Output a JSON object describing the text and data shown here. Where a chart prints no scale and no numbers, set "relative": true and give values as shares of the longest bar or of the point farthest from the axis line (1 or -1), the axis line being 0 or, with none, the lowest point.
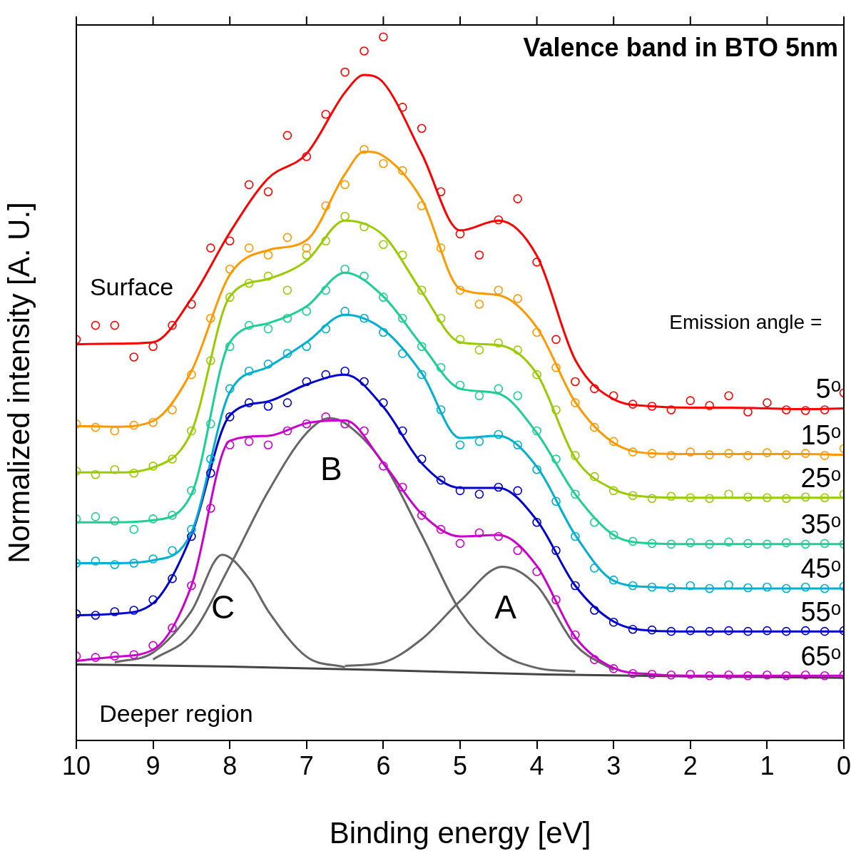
{
  "chart_data": {
    "type": "scatter",
    "title": "Valence band in BTO 5nm",
    "xlabel": "Binding energy [eV]",
    "ylabel": "Normalized intensity [A. U.]",
    "relative": true,
    "xlim": [
      10,
      0
    ],
    "xticks": [
      10,
      9,
      8,
      7,
      6,
      5,
      4,
      3,
      2,
      1,
      0
    ],
    "grid": false,
    "legend": false,
    "tick_labels": "x",
    "annotations": [
      "A",
      "B",
      "C",
      "Surface",
      "Deeper region",
      "Emission angle ="
    ],
    "series": [
      {
        "color": "#ff0000",
        "x": [
          10,
          9.75,
          9.5,
          9.25,
          9,
          8.75,
          8.5,
          8.25,
          8,
          7.75,
          7.5,
          7.25,
          7,
          6.75,
          6.5,
          6.25,
          6,
          5.75,
          5.5,
          5.25,
          5,
          4.75,
          4.5,
          4.25,
          4,
          3.75,
          3.5,
          3.25,
          3,
          2.75,
          2.5,
          2.25,
          2,
          1.75,
          1.5,
          1.25,
          1,
          0.75,
          0.5,
          0.25,
          0
        ],
        "values": [
          0.57,
          0.59,
          0.59,
          0.545,
          0.56,
          0.59,
          0.62,
          0.7,
          0.71,
          0.79,
          0.78,
          0.86,
          0.83,
          0.89,
          0.95,
          0.98,
          1.0,
          0.9,
          0.87,
          0.78,
          0.72,
          0.69,
          0.74,
          0.77,
          0.68,
          0.57,
          0.51,
          0.5,
          0.49,
          0.478,
          0.475,
          0.47,
          0.483,
          0.476,
          0.49,
          0.467,
          0.48,
          0.47,
          0.469,
          0.47,
          0.494
        ]
      },
      {
        "color": "#ff9900",
        "x": [
          10,
          9.75,
          9.5,
          9.25,
          9,
          8.75,
          8.5,
          8.25,
          8,
          7.75,
          7.5,
          7.25,
          7,
          6.75,
          6.5,
          6.25,
          6,
          5.75,
          5.5,
          5.25,
          5,
          4.75,
          4.5,
          4.25,
          4,
          3.75,
          3.5,
          3.25,
          3,
          2.75,
          2.5,
          2.25,
          2,
          1.75,
          1.5,
          1.25,
          1,
          0.75,
          0.5,
          0.25,
          0
        ],
        "values": [
          0.45,
          0.445,
          0.44,
          0.448,
          0.452,
          0.47,
          0.52,
          0.6,
          0.67,
          0.7,
          0.69,
          0.715,
          0.7,
          0.76,
          0.79,
          0.84,
          0.82,
          0.81,
          0.76,
          0.7,
          0.64,
          0.62,
          0.64,
          0.628,
          0.58,
          0.53,
          0.48,
          0.445,
          0.425,
          0.41,
          0.408,
          0.405,
          0.41,
          0.406,
          0.408,
          0.405,
          0.409,
          0.406,
          0.408,
          0.405,
          0.415
        ]
      },
      {
        "color": "#99cc00",
        "x": [
          10,
          9.75,
          9.5,
          9.25,
          9,
          8.75,
          8.5,
          8.25,
          8,
          7.75,
          7.5,
          7.25,
          7,
          6.75,
          6.5,
          6.25,
          6,
          5.75,
          5.5,
          5.25,
          5,
          4.75,
          4.5,
          4.25,
          4,
          3.75,
          3.5,
          3.25,
          3,
          2.75,
          2.5,
          2.25,
          2,
          1.75,
          1.5,
          1.25,
          1,
          0.75,
          0.5,
          0.25,
          0
        ],
        "values": [
          0.383,
          0.378,
          0.385,
          0.38,
          0.39,
          0.4,
          0.44,
          0.54,
          0.63,
          0.65,
          0.66,
          0.64,
          0.69,
          0.71,
          0.745,
          0.73,
          0.705,
          0.69,
          0.64,
          0.6,
          0.57,
          0.555,
          0.565,
          0.555,
          0.52,
          0.47,
          0.405,
          0.375,
          0.355,
          0.348,
          0.344,
          0.347,
          0.345,
          0.344,
          0.35,
          0.346,
          0.345,
          0.344,
          0.346,
          0.345,
          0.35
        ]
      },
      {
        "color": "#1ccf93",
        "x": [
          10,
          9.75,
          9.5,
          9.25,
          9,
          8.75,
          8.5,
          8.25,
          8,
          7.75,
          7.5,
          7.25,
          7,
          6.75,
          6.5,
          6.25,
          6,
          5.75,
          5.5,
          5.25,
          5,
          4.75,
          4.5,
          4.25,
          4,
          3.75,
          3.5,
          3.25,
          3,
          2.75,
          2.5,
          2.25,
          2,
          1.75,
          1.5,
          1.25,
          1,
          0.75,
          0.5,
          0.25,
          0
        ],
        "values": [
          0.315,
          0.318,
          0.312,
          0.3,
          0.315,
          0.32,
          0.355,
          0.45,
          0.56,
          0.59,
          0.585,
          0.6,
          0.61,
          0.64,
          0.67,
          0.66,
          0.63,
          0.6,
          0.56,
          0.53,
          0.505,
          0.49,
          0.5,
          0.49,
          0.44,
          0.4,
          0.35,
          0.31,
          0.292,
          0.283,
          0.28,
          0.279,
          0.281,
          0.279,
          0.282,
          0.28,
          0.279,
          0.281,
          0.279,
          0.28,
          0.279
        ]
      },
      {
        "color": "#00b0d0",
        "x": [
          10,
          9.75,
          9.5,
          9.25,
          9,
          8.75,
          8.5,
          8.25,
          8,
          7.75,
          7.5,
          7.25,
          7,
          6.75,
          6.5,
          6.25,
          6,
          5.75,
          5.5,
          5.25,
          5,
          4.75,
          4.5,
          4.25,
          4,
          3.75,
          3.5,
          3.25,
          3,
          2.75,
          2.5,
          2.25,
          2,
          1.75,
          1.5,
          1.25,
          1,
          0.75,
          0.5,
          0.25,
          0
        ],
        "values": [
          0.252,
          0.255,
          0.25,
          0.252,
          0.258,
          0.27,
          0.3,
          0.4,
          0.5,
          0.525,
          0.535,
          0.55,
          0.56,
          0.585,
          0.61,
          0.6,
          0.58,
          0.55,
          0.52,
          0.47,
          0.42,
          0.425,
          0.435,
          0.42,
          0.385,
          0.34,
          0.29,
          0.245,
          0.228,
          0.22,
          0.218,
          0.217,
          0.22,
          0.216,
          0.221,
          0.217,
          0.218,
          0.216,
          0.218,
          0.216,
          0.219
        ]
      },
      {
        "color": "#0000cc",
        "x": [
          10,
          9.75,
          9.5,
          9.25,
          9,
          8.75,
          8.5,
          8.25,
          8,
          7.75,
          7.5,
          7.25,
          7,
          6.75,
          6.5,
          6.25,
          6,
          5.75,
          5.5,
          5.25,
          5,
          4.75,
          4.5,
          4.25,
          4,
          3.75,
          3.5,
          3.25,
          3,
          2.75,
          2.5,
          2.25,
          2,
          1.75,
          1.5,
          1.25,
          1,
          0.75,
          0.5,
          0.25,
          0
        ],
        "values": [
          0.18,
          0.178,
          0.183,
          0.185,
          0.2,
          0.23,
          0.29,
          0.38,
          0.46,
          0.48,
          0.475,
          0.48,
          0.51,
          0.52,
          0.525,
          0.51,
          0.48,
          0.44,
          0.4,
          0.37,
          0.355,
          0.35,
          0.36,
          0.355,
          0.31,
          0.27,
          0.22,
          0.185,
          0.168,
          0.158,
          0.157,
          0.155,
          0.156,
          0.155,
          0.156,
          0.155,
          0.156,
          0.155,
          0.156,
          0.155,
          0.156
        ]
      },
      {
        "color": "#cc00cc",
        "x": [
          10,
          9.75,
          9.5,
          9.25,
          9,
          8.75,
          8.5,
          8.25,
          8,
          7.75,
          7.5,
          7.25,
          7,
          6.75,
          6.5,
          6.25,
          6,
          5.75,
          5.5,
          5.25,
          5,
          4.75,
          4.5,
          4.25,
          4,
          3.75,
          3.5,
          3.25,
          3,
          2.75,
          2.5,
          2.25,
          2,
          1.75,
          1.5,
          1.25,
          1,
          0.75,
          0.5,
          0.25,
          0
        ],
        "values": [
          0.12,
          0.118,
          0.12,
          0.122,
          0.135,
          0.16,
          0.22,
          0.33,
          0.42,
          0.425,
          0.42,
          0.44,
          0.45,
          0.46,
          0.45,
          0.44,
          0.39,
          0.36,
          0.32,
          0.3,
          0.28,
          0.295,
          0.29,
          0.27,
          0.24,
          0.2,
          0.15,
          0.115,
          0.102,
          0.095,
          0.094,
          0.093,
          0.094,
          0.092,
          0.093,
          0.092,
          0.093,
          0.092,
          0.093,
          0.092,
          0.093
        ]
      },
      {
        "type": "line",
        "name": "5ᵒ",
        "color": "#ff0000",
        "x": [
          10,
          9.5,
          9,
          8.5,
          8,
          7.5,
          7,
          6.5,
          6.25,
          6,
          5.5,
          5,
          4.5,
          4,
          3.5,
          3,
          2.5,
          2,
          1.5,
          1,
          0.5,
          0
        ],
        "values": [
          0.563,
          0.564,
          0.566,
          0.628,
          0.722,
          0.799,
          0.834,
          0.921,
          0.946,
          0.935,
          0.834,
          0.725,
          0.739,
          0.689,
          0.541,
          0.485,
          0.475,
          0.473,
          0.473,
          0.472,
          0.471,
          0.472
        ]
      },
      {
        "type": "line",
        "name": "15ᵒ",
        "color": "#ff9900",
        "x": [
          10,
          9.5,
          9,
          8.5,
          8,
          7.5,
          7,
          6.5,
          6.25,
          6,
          5.5,
          5,
          4.5,
          4,
          3.5,
          3,
          2.5,
          2,
          1.5,
          1,
          0.5,
          0
        ],
        "values": [
          0.447,
          0.446,
          0.454,
          0.525,
          0.662,
          0.697,
          0.711,
          0.805,
          0.837,
          0.831,
          0.769,
          0.642,
          0.633,
          0.587,
          0.481,
          0.423,
          0.408,
          0.407,
          0.407,
          0.407,
          0.407,
          0.406
        ]
      },
      {
        "type": "line",
        "name": "25ᵒ",
        "color": "#99cc00",
        "x": [
          10,
          9.5,
          9,
          8.5,
          8,
          7.5,
          7,
          6.5,
          6,
          5.5,
          5,
          4.5,
          4,
          3.5,
          3,
          2.5,
          2,
          1.5,
          1,
          0.5,
          0
        ],
        "values": [
          0.381,
          0.381,
          0.388,
          0.439,
          0.631,
          0.656,
          0.682,
          0.739,
          0.718,
          0.638,
          0.566,
          0.562,
          0.521,
          0.401,
          0.357,
          0.346,
          0.345,
          0.345,
          0.345,
          0.345,
          0.345
        ]
      },
      {
        "type": "line",
        "name": "35ᵒ",
        "color": "#1ccf93",
        "x": [
          10,
          9.5,
          9,
          8.5,
          8,
          7.5,
          7,
          6.5,
          6,
          5.5,
          5,
          4.5,
          4,
          3.5,
          3,
          2.5,
          2,
          1.5,
          1,
          0.5,
          0
        ],
        "values": [
          0.31,
          0.31,
          0.313,
          0.35,
          0.566,
          0.593,
          0.617,
          0.665,
          0.631,
          0.562,
          0.5,
          0.493,
          0.437,
          0.35,
          0.292,
          0.28,
          0.279,
          0.279,
          0.279,
          0.279,
          0.279
        ]
      },
      {
        "type": "line",
        "name": "45ᵒ",
        "color": "#00b0d0",
        "x": [
          10,
          9.5,
          9,
          8.5,
          8,
          7.5,
          7,
          6.5,
          6,
          5.5,
          5,
          4.5,
          4,
          3.5,
          3,
          2.5,
          2,
          1.5,
          1,
          0.5,
          0
        ],
        "values": [
          0.252,
          0.252,
          0.256,
          0.296,
          0.495,
          0.531,
          0.566,
          0.605,
          0.584,
          0.522,
          0.43,
          0.433,
          0.389,
          0.292,
          0.227,
          0.218,
          0.216,
          0.216,
          0.216,
          0.216,
          0.216
        ]
      },
      {
        "type": "line",
        "name": "55ᵒ",
        "color": "#0000cc",
        "x": [
          10,
          9.5,
          9,
          8.5,
          8,
          7.5,
          7,
          6.5,
          6,
          5.5,
          5,
          4.5,
          4,
          3.5,
          3,
          2.5,
          2,
          1.5,
          1,
          0.5,
          0
        ],
        "values": [
          0.178,
          0.18,
          0.195,
          0.292,
          0.462,
          0.482,
          0.506,
          0.52,
          0.474,
          0.394,
          0.359,
          0.359,
          0.313,
          0.22,
          0.169,
          0.156,
          0.155,
          0.155,
          0.155,
          0.155,
          0.155
        ]
      },
      {
        "type": "line",
        "name": "65ᵒ",
        "color": "#cc00cc",
        "x": [
          10,
          9.5,
          9,
          8.5,
          8,
          7.5,
          7,
          6.5,
          6,
          5.5,
          5,
          4.5,
          4,
          3.5,
          3,
          2.5,
          2,
          1.5,
          1,
          0.5,
          0
        ],
        "values": [
          0.113,
          0.119,
          0.129,
          0.22,
          0.426,
          0.433,
          0.451,
          0.455,
          0.394,
          0.322,
          0.29,
          0.292,
          0.248,
          0.147,
          0.103,
          0.094,
          0.092,
          0.092,
          0.092,
          0.092,
          0.092
        ]
      },
      {
        "type": "line",
        "color": "#666666",
        "x": [
          9.5,
          9,
          8.5,
          8.1,
          7.75,
          7.5,
          7,
          6.5
        ],
        "values": [
          0.111,
          0.125,
          0.184,
          0.264,
          0.23,
          0.184,
          0.119,
          0.104
        ]
      },
      {
        "type": "line",
        "color": "#666666",
        "x": [
          9,
          8.5,
          8,
          7.5,
          7,
          6.7,
          6.5,
          6,
          5.5,
          5,
          4.5,
          4,
          3.5
        ],
        "values": [
          0.115,
          0.151,
          0.248,
          0.354,
          0.437,
          0.458,
          0.451,
          0.394,
          0.292,
          0.184,
          0.126,
          0.103,
          0.098
        ]
      },
      {
        "type": "line",
        "color": "#666666",
        "x": [
          6.5,
          6,
          5.5,
          5,
          4.45,
          4,
          3.5,
          3
        ],
        "values": [
          0.106,
          0.111,
          0.144,
          0.198,
          0.247,
          0.22,
          0.136,
          0.1
        ]
      },
      {
        "type": "line",
        "color": "#444444",
        "x": [
          10,
          8,
          6,
          4,
          2,
          0
        ],
        "values": [
          0.108,
          0.105,
          0.1,
          0.094,
          0.091,
          0.089
        ]
      }
    ]
  }
}
